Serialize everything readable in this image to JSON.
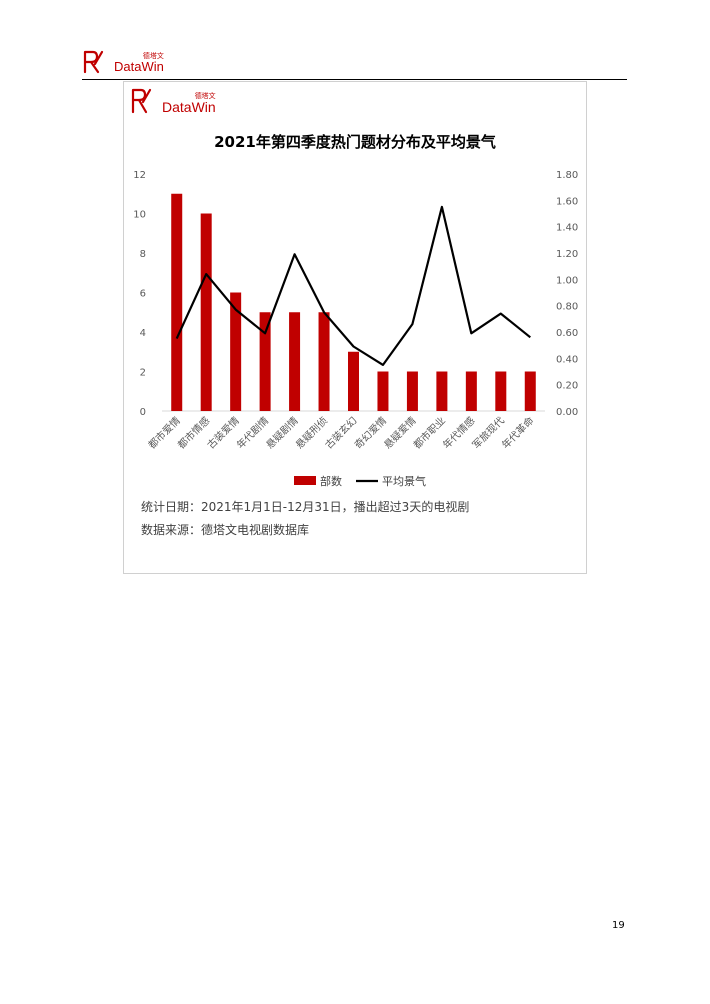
{
  "header": {
    "logo_cn": "德塔文",
    "logo_en": "DataWin"
  },
  "figure": {
    "logo_cn": "德塔文",
    "logo_en": "DataWin",
    "notes": [
      "统计日期：2021年1月1日-12月31日，播出超过3天的电视剧",
      "数据来源：德塔文电视剧数据库"
    ]
  },
  "chart_data": {
    "type": "bar",
    "title": "2021年第四季度热门题材分布及平均景气",
    "categories": [
      "都市爱情",
      "都市情感",
      "古装爱情",
      "年代剧情",
      "悬疑剧情",
      "悬疑刑侦",
      "古装玄幻",
      "奇幻爱情",
      "悬疑爱情",
      "都市职业",
      "年代情感",
      "军旅现代",
      "年代革命"
    ],
    "series": [
      {
        "name": "部数",
        "type": "bar",
        "axis": "left",
        "color": "#c00000",
        "values": [
          11,
          10,
          6,
          5,
          5,
          5,
          3,
          2,
          2,
          2,
          2,
          2,
          2
        ]
      },
      {
        "name": "平均景气",
        "type": "line",
        "axis": "right",
        "color": "#000000",
        "values": [
          0.55,
          1.04,
          0.77,
          0.59,
          1.19,
          0.75,
          0.49,
          0.35,
          0.66,
          1.55,
          0.59,
          0.74,
          0.56
        ]
      }
    ],
    "y_left": {
      "min": 0,
      "max": 12,
      "ticks": [
        "0",
        "2",
        "4",
        "6",
        "8",
        "10",
        "12"
      ]
    },
    "y_right": {
      "min": 0,
      "max": 1.8,
      "ticks": [
        "0.00",
        "0.20",
        "0.40",
        "0.60",
        "0.80",
        "1.00",
        "1.20",
        "1.40",
        "1.60",
        "1.80"
      ]
    },
    "grid": false,
    "legend_position": "bottom"
  },
  "page": {
    "number": "19"
  }
}
